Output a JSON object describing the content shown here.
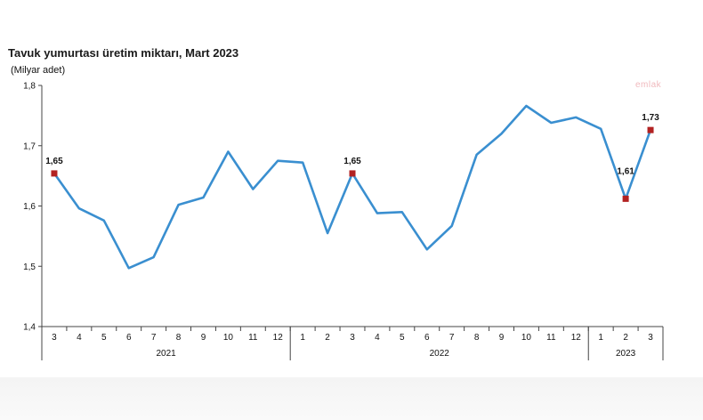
{
  "chart_data": {
    "type": "line",
    "title": "Tavuk yumurtası üretim miktarı, Mart 2023",
    "ylabel": "(Milyar adet)",
    "ylim": [
      1.4,
      1.8
    ],
    "yticks": [
      "1,4",
      "1,5",
      "1,6",
      "1,7",
      "1,8"
    ],
    "categories": [
      "3",
      "4",
      "5",
      "6",
      "7",
      "8",
      "9",
      "10",
      "11",
      "12",
      "1",
      "2",
      "3",
      "4",
      "5",
      "6",
      "7",
      "8",
      "9",
      "10",
      "11",
      "12",
      "1",
      "2",
      "3"
    ],
    "year_groups": [
      {
        "label": "2021",
        "count": 10
      },
      {
        "label": "2022",
        "count": 12
      },
      {
        "label": "2023",
        "count": 3
      }
    ],
    "series": [
      {
        "values": [
          1.654,
          1.596,
          1.576,
          1.497,
          1.515,
          1.602,
          1.614,
          1.69,
          1.628,
          1.675,
          1.672,
          1.555,
          1.654,
          1.588,
          1.59,
          1.528,
          1.567,
          1.685,
          1.72,
          1.766,
          1.738,
          1.747,
          1.728,
          1.612,
          1.726
        ],
        "color": "#3a8fd0"
      }
    ],
    "annotations": [
      {
        "index": 0,
        "text": "1,65"
      },
      {
        "index": 12,
        "text": "1,65"
      },
      {
        "index": 23,
        "text": "1,61"
      },
      {
        "index": 24,
        "text": "1,73"
      }
    ],
    "marker_color": "#b22222",
    "grid": false,
    "legend": "none"
  },
  "watermark": "emlak"
}
